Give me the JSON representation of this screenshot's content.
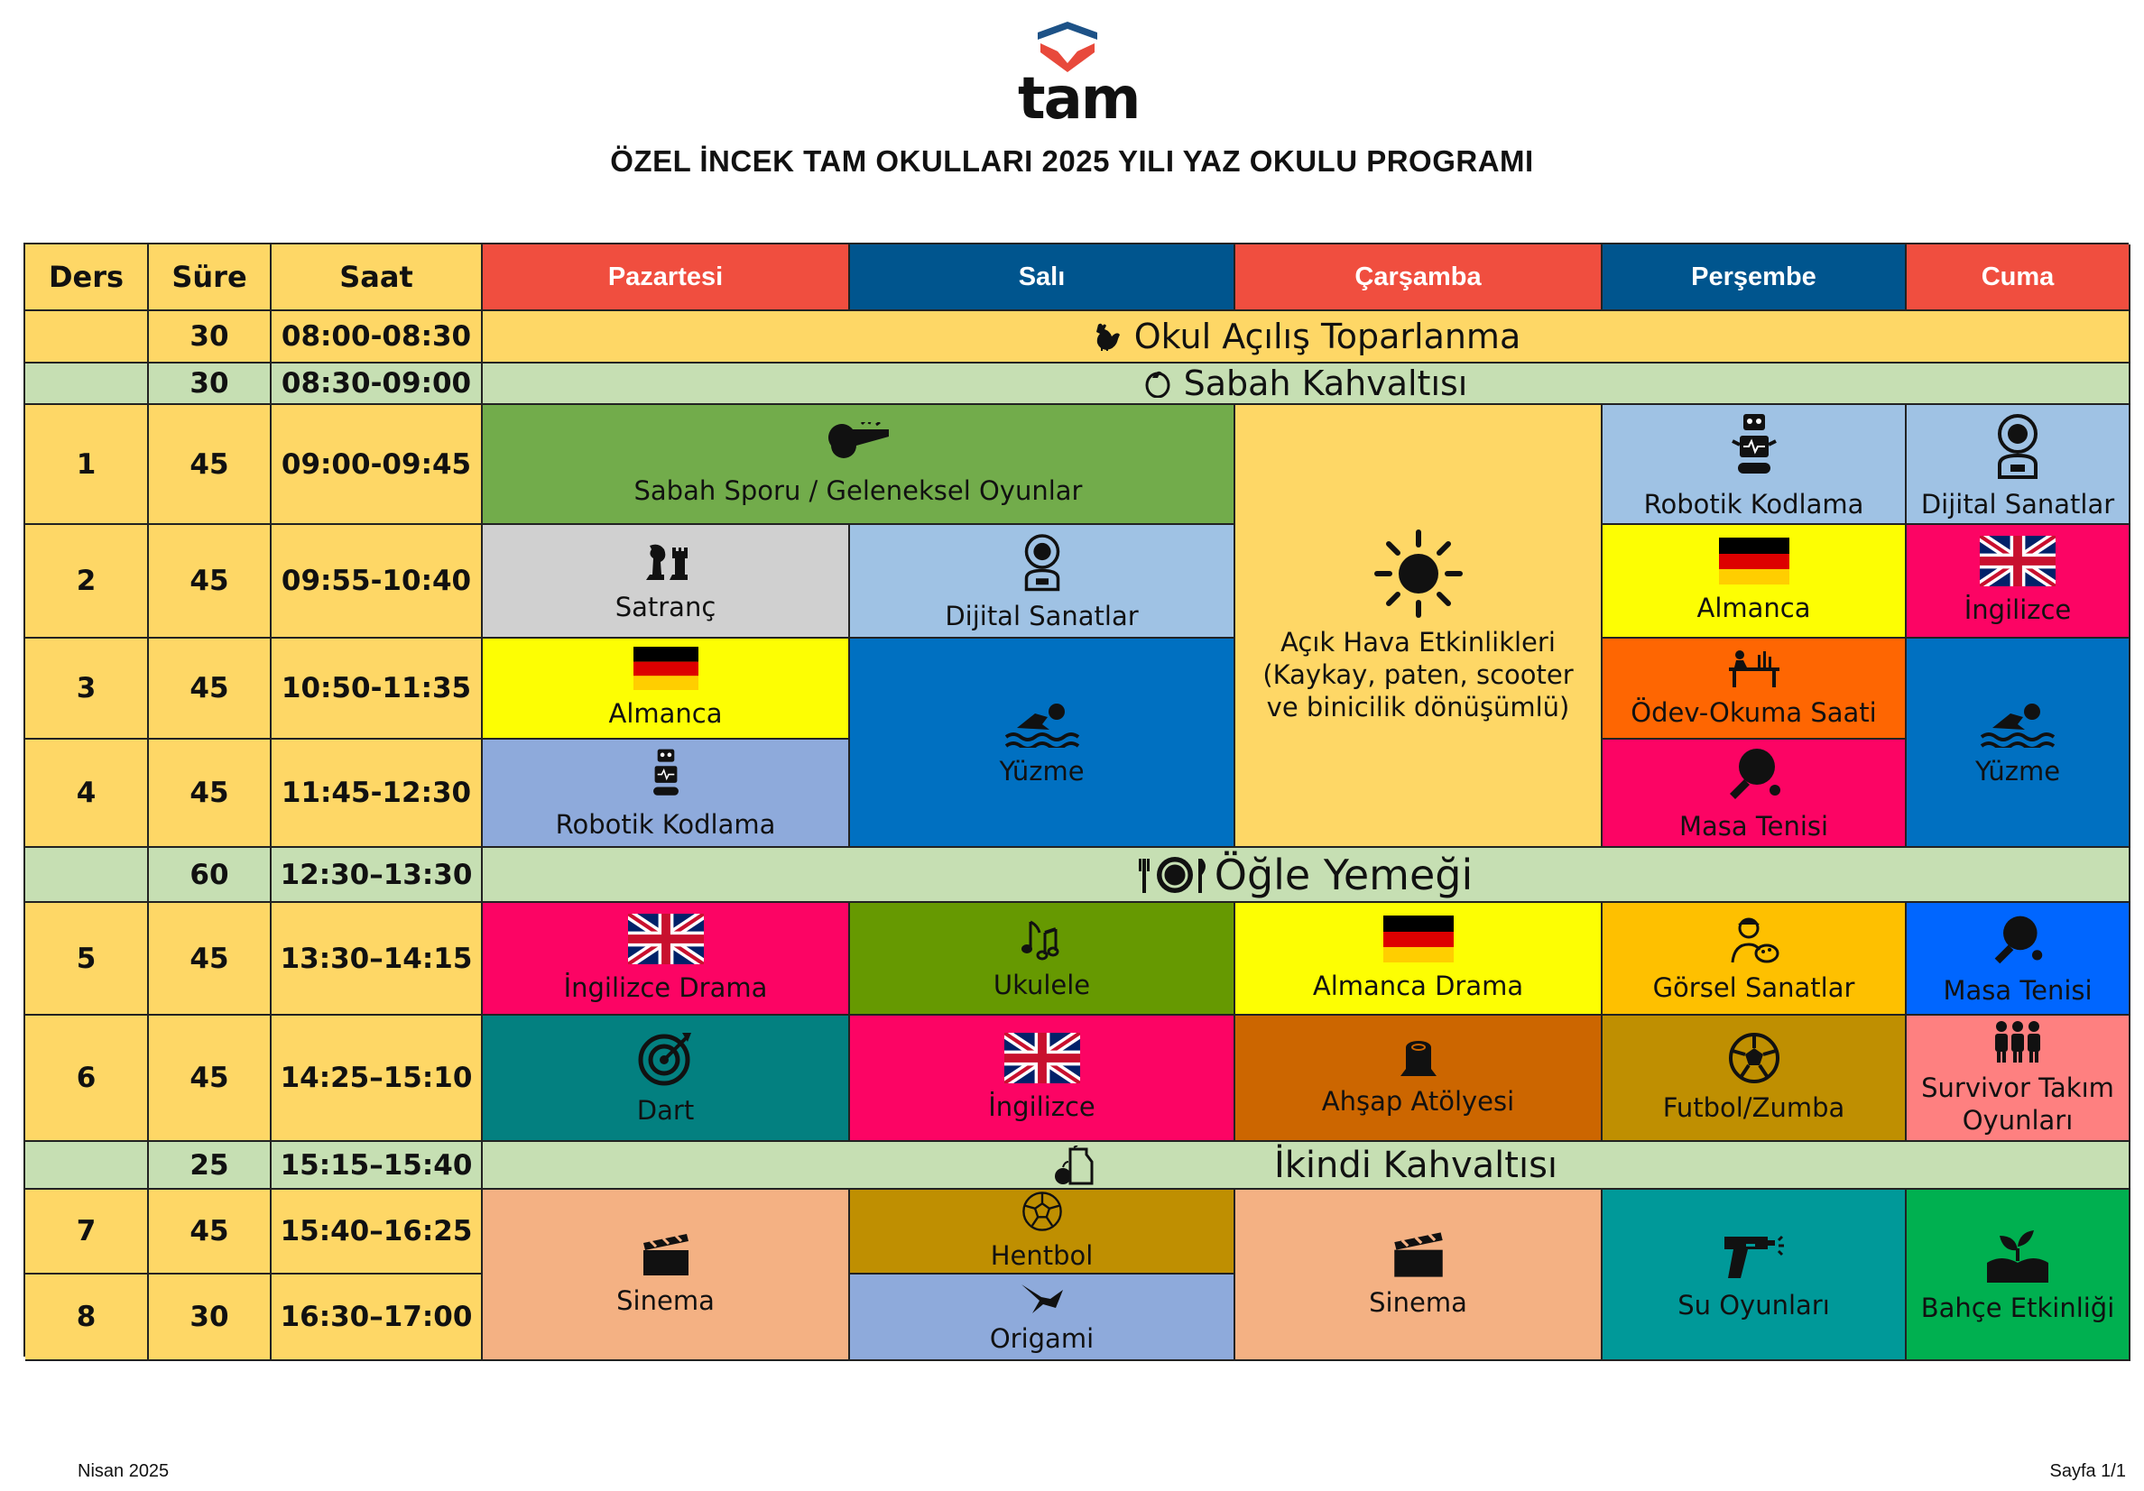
{
  "brand": {
    "logo_text": "tam"
  },
  "title": "ÖZEL İNCEK TAM OKULLARI 2025 YILI YAZ OKULU PROGRAMI",
  "headers": {
    "ders": "Ders",
    "sure": "Süre",
    "saat": "Saat",
    "days": [
      "Pazartesi",
      "Salı",
      "Çarşamba",
      "Perşembe",
      "Cuma"
    ]
  },
  "rows": [
    {
      "ders": "",
      "sure": "30",
      "saat": "08:00-08:30"
    },
    {
      "ders": "",
      "sure": "30",
      "saat": "08:30-09:00"
    },
    {
      "ders": "1",
      "sure": "45",
      "saat": "09:00-09:45"
    },
    {
      "ders": "2",
      "sure": "45",
      "saat": "09:55-10:40"
    },
    {
      "ders": "3",
      "sure": "45",
      "saat": "10:50-11:35"
    },
    {
      "ders": "4",
      "sure": "45",
      "saat": "11:45-12:30"
    },
    {
      "ders": "",
      "sure": "60",
      "saat": "12:30–13:30"
    },
    {
      "ders": "5",
      "sure": "45",
      "saat": "13:30–14:15"
    },
    {
      "ders": "6",
      "sure": "45",
      "saat": "14:25–15:10"
    },
    {
      "ders": "",
      "sure": "25",
      "saat": "15:15–15:40"
    },
    {
      "ders": "7",
      "sure": "45",
      "saat": "15:40–16:25"
    },
    {
      "ders": "8",
      "sure": "30",
      "saat": "16:30–17:00"
    }
  ],
  "spans": {
    "opening": "Okul Açılış Toparlanma",
    "breakfast": "Sabah Kahvaltısı",
    "lunch": "Öğle Yemeği",
    "afternoon": "İkindi Kahvaltısı"
  },
  "activities": {
    "morning_sport": "Sabah Sporu / Geleneksel Oyunlar",
    "outdoor": "Açık Hava Etkinlikleri (Kaykay, paten, scooter ve binicilik dönüşümlü)",
    "thu_1": "Robotik Kodlama",
    "fri_1": "Dijital Sanatlar",
    "mon_2": "Satranç",
    "tue_2": "Dijital Sanatlar",
    "thu_2": "Almanca",
    "fri_2": "İngilizce",
    "mon_3": "Almanca",
    "tue_34": "Yüzme",
    "thu_3": "Ödev-Okuma Saati",
    "fri_34": "Yüzme",
    "mon_4": "Robotik Kodlama",
    "thu_4": "Masa Tenisi",
    "mon_5": "İngilizce Drama",
    "tue_5": "Ukulele",
    "wed_5": "Almanca Drama",
    "thu_5": "Görsel Sanatlar",
    "fri_5": "Masa Tenisi",
    "mon_6": "Dart",
    "tue_6": "İngilizce",
    "wed_6": "Ahşap Atölyesi",
    "thu_6": "Futbol/Zumba",
    "fri_6": "Survivor Takım Oyunları",
    "mon_78": "Sinema",
    "tue_7": "Hentbol",
    "tue_8": "Origami",
    "wed_78": "Sinema",
    "thu_78": "Su Oyunları",
    "fri_78": "Bahçe Etkinliği"
  },
  "colors": {
    "header_yellow": "#fed766",
    "red": "#f04e3f",
    "navy": "#00558e",
    "green_band": "#c6dfb3"
  },
  "footer": {
    "left": "Nisan 2025",
    "right": "Sayfa 1/1"
  }
}
